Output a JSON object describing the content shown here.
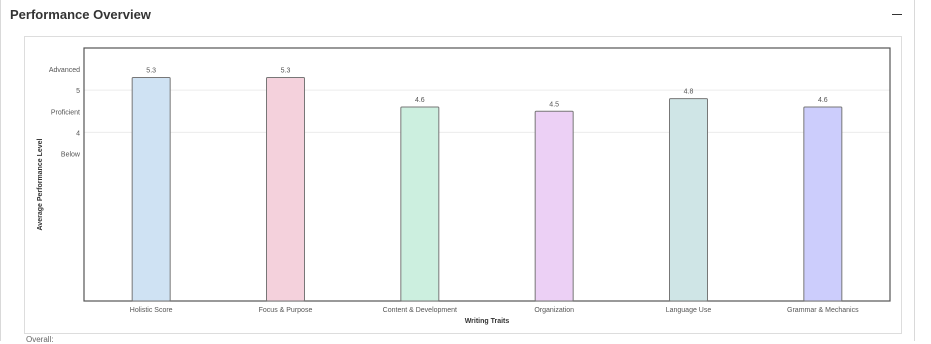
{
  "panel": {
    "title": "Performance Overview"
  },
  "footer": {
    "label": "Overall:"
  },
  "chart_data": {
    "type": "bar",
    "categories": [
      "Holistic Score",
      "Focus & Purpose",
      "Content & Development",
      "Organization",
      "Language Use",
      "Grammar & Mechanics"
    ],
    "values": [
      5.3,
      5.3,
      4.6,
      4.5,
      4.8,
      4.6
    ],
    "data_labels": [
      "5.3",
      "5.3",
      "4.6",
      "4.5",
      "4.8",
      "4.6"
    ],
    "colors": [
      "#cfe2f3",
      "#f4d1dc",
      "#ccefdf",
      "#ecd0f5",
      "#cfe5e6",
      "#cccdfc"
    ],
    "bar_stroke": "#777777",
    "xlabel": "Writing Traits",
    "ylabel": "Average Performance Level",
    "ylim": [
      0,
      6
    ],
    "y_ticks": [
      {
        "value": 5,
        "label": "5"
      },
      {
        "value": 4,
        "label": "4"
      }
    ],
    "y_level_labels": [
      {
        "value": 5.5,
        "label": "Advanced"
      },
      {
        "value": 4.5,
        "label": "Proficient"
      },
      {
        "value": 3.5,
        "label": "Below"
      }
    ],
    "gridlines_at": [
      5,
      4
    ],
    "grid": true
  }
}
